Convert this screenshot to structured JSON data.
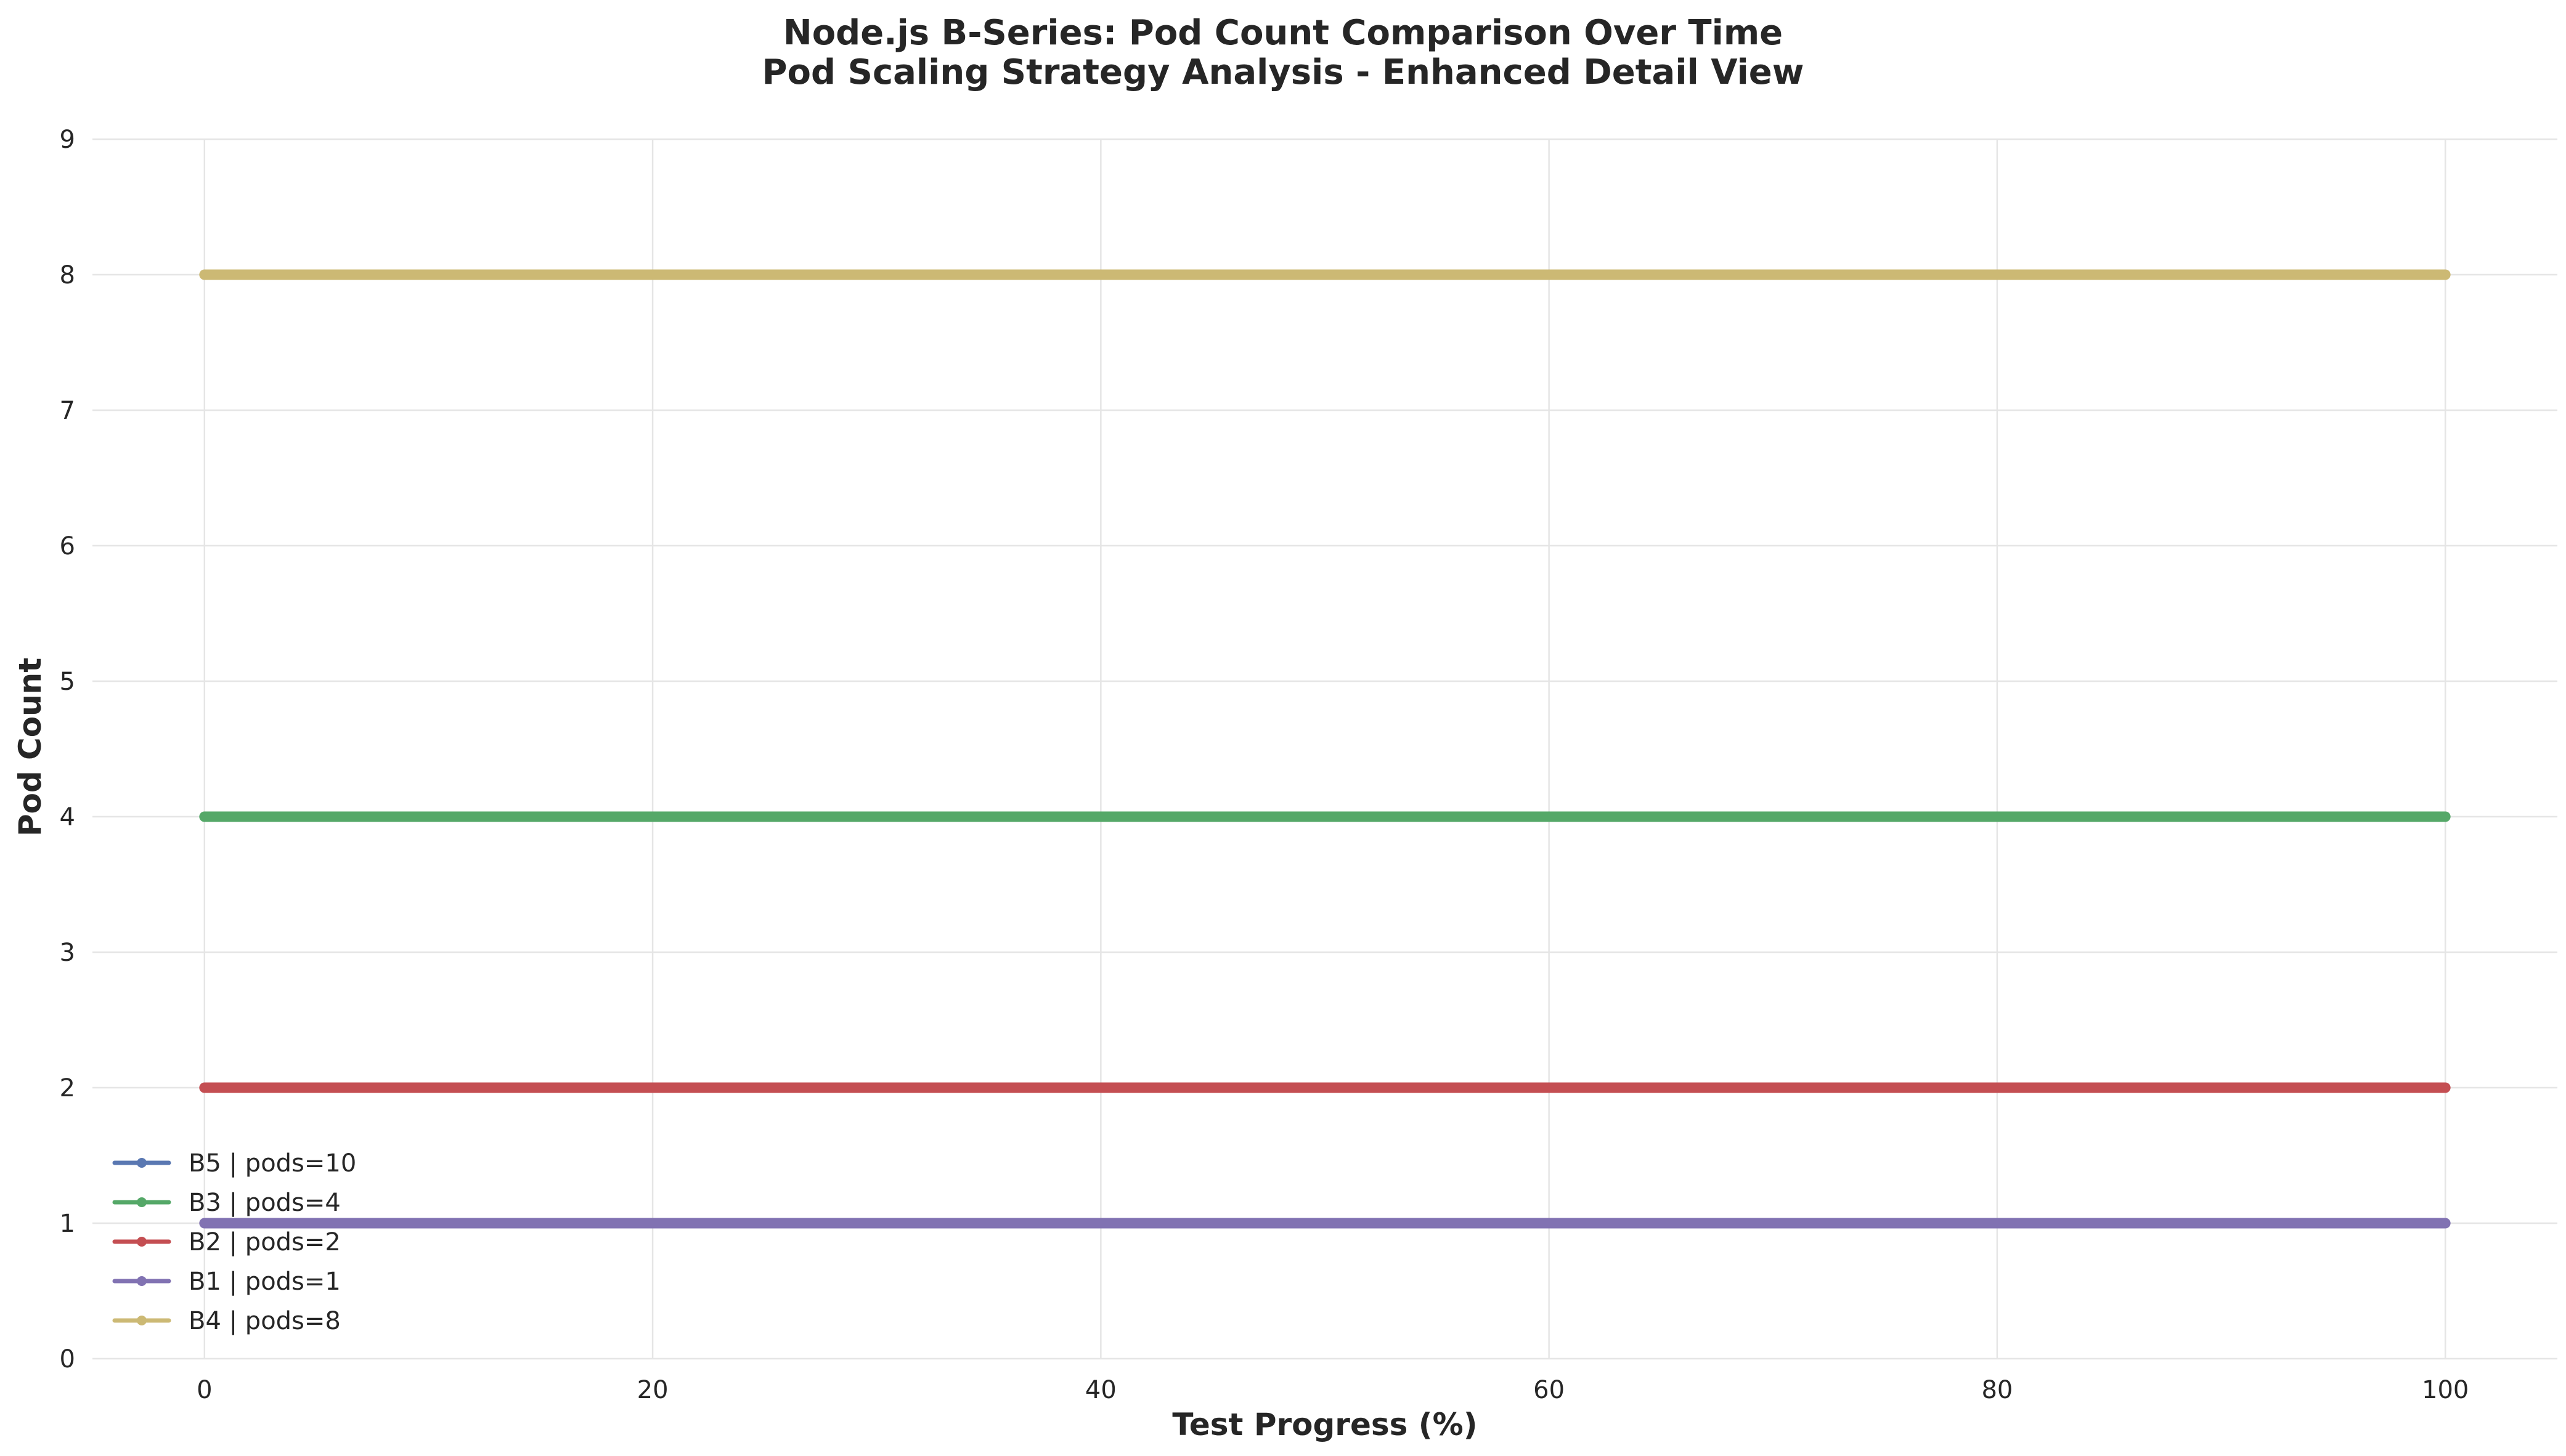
{
  "chart_data": {
    "type": "line",
    "title": "Node.js B-Series: Pod Count Comparison Over Time",
    "subtitle": "Pod Scaling Strategy Analysis - Enhanced Detail View",
    "xlabel": "Test Progress (%)",
    "ylabel": "Pod Count",
    "xlim": [
      -5,
      105
    ],
    "ylim": [
      0,
      9
    ],
    "x_ticks": [
      "0",
      "20",
      "40",
      "60",
      "80",
      "100"
    ],
    "y_ticks": [
      "0",
      "1",
      "2",
      "3",
      "4",
      "5",
      "6",
      "7",
      "8",
      "9"
    ],
    "grid": true,
    "legend_position": "lower-left",
    "series": [
      {
        "name": "B5 | pods=10",
        "color": "#5a78b2",
        "x": [
          0,
          100
        ],
        "y": [
          null,
          null
        ]
      },
      {
        "name": "B3 | pods=4",
        "color": "#55a868",
        "x": [
          0,
          100
        ],
        "y": [
          4,
          4
        ]
      },
      {
        "name": "B2 | pods=2",
        "color": "#c44e52",
        "x": [
          0,
          100
        ],
        "y": [
          2,
          2
        ]
      },
      {
        "name": "B1 | pods=1",
        "color": "#8172b2",
        "x": [
          0,
          100
        ],
        "y": [
          1,
          1
        ]
      },
      {
        "name": "B4 | pods=8",
        "color": "#ccb974",
        "x": [
          0,
          100
        ],
        "y": [
          8,
          8
        ]
      }
    ]
  }
}
